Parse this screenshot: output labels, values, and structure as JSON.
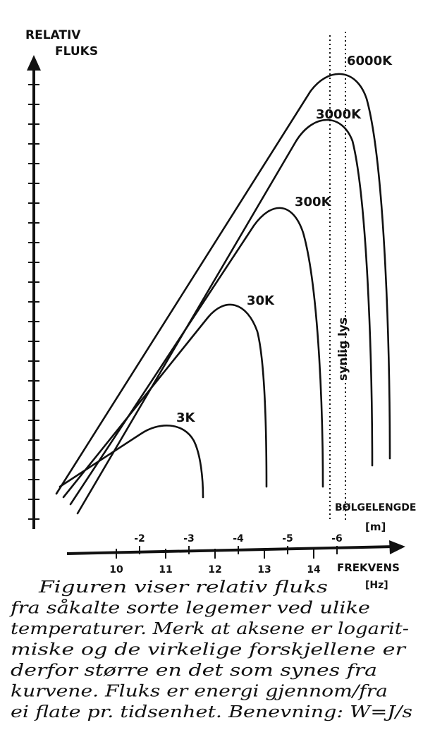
{
  "y_axis_label": [
    "RELATIV",
    "FLUKS"
  ],
  "curves": [
    {
      "label": "3K"
    },
    {
      "label": "30K"
    },
    {
      "label": "300K"
    },
    {
      "label": "3000K"
    },
    {
      "label": "6000K"
    }
  ],
  "visible_light_label": "synlig lys",
  "wavelength_axis": {
    "label": "BØLGELENGDE",
    "unit": "[m]",
    "ticks": [
      "-2",
      "-3",
      "-4",
      "-5",
      "-6"
    ]
  },
  "frequency_axis": {
    "label": "FREKVENS",
    "unit": "[Hz]",
    "ticks": [
      "10",
      "11",
      "12",
      "13",
      "14"
    ]
  },
  "caption": [
    "Figuren viser relativ fluks",
    "fra såkalte sorte legemer ved ulike",
    "temperaturer. Merk at aksene er logarit-",
    "miske og de virkelige forskjellene er",
    "derfor større en det som synes fra",
    "kurvene. Fluks er energi gjennom/fra",
    "ei flate pr. tidsenhet. Benevning: W=J/s"
  ]
}
